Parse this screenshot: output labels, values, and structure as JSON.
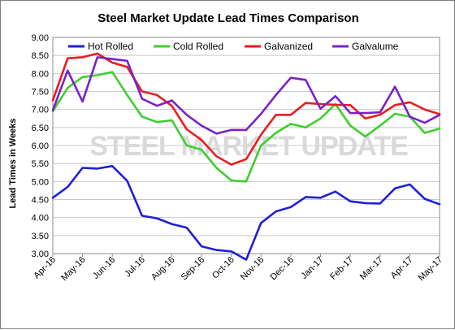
{
  "chart_data": {
    "type": "line",
    "title": "Steel Market Update Lead Times Comparison",
    "ylabel": "Lead Times in Weeks",
    "xlabel": "",
    "ylim": [
      3.0,
      9.0
    ],
    "yticks": [
      "3.00",
      "3.50",
      "4.00",
      "4.50",
      "5.00",
      "5.50",
      "6.00",
      "6.50",
      "7.00",
      "7.50",
      "8.00",
      "8.50",
      "9.00"
    ],
    "xticks": [
      "Apr-16",
      "May-16",
      "Jun-16",
      "Jul-16",
      "Aug-16",
      "Sep-16",
      "Oct-16",
      "Nov-16",
      "Dec-16",
      "Jan-17",
      "Feb-17",
      "Mar-17",
      "Apr-17",
      "May-17"
    ],
    "grid": true,
    "legend_position": "top",
    "watermark": "STEEL MARKET UPDATE",
    "x": [
      0,
      0.5,
      1,
      1.5,
      2,
      2.5,
      3,
      3.5,
      4,
      4.5,
      5,
      5.5,
      6,
      6.5,
      7,
      7.5,
      8,
      8.5,
      9,
      9.5,
      10,
      10.5,
      11,
      11.5,
      12,
      12.5,
      13
    ],
    "series": [
      {
        "name": "Hot Rolled",
        "color": "#1f1fd6",
        "values": [
          4.55,
          4.85,
          5.38,
          5.36,
          5.43,
          5.02,
          4.05,
          3.98,
          3.82,
          3.72,
          3.2,
          3.1,
          3.06,
          2.83,
          3.85,
          4.17,
          4.29,
          4.57,
          4.55,
          4.72,
          4.45,
          4.4,
          4.39,
          4.81,
          4.92,
          4.52,
          4.37
        ]
      },
      {
        "name": "Cold Rolled",
        "color": "#3ecf2c",
        "values": [
          6.95,
          7.6,
          7.9,
          7.95,
          8.04,
          7.4,
          6.8,
          6.65,
          6.7,
          6.0,
          5.88,
          5.38,
          5.03,
          5.0,
          6.0,
          6.35,
          6.6,
          6.5,
          6.75,
          7.15,
          6.55,
          6.25,
          6.55,
          6.88,
          6.8,
          6.35,
          6.47
        ]
      },
      {
        "name": "Galvanized",
        "color": "#e81e1e",
        "values": [
          7.25,
          8.42,
          8.45,
          8.55,
          8.3,
          8.18,
          7.5,
          7.4,
          7.1,
          6.45,
          6.15,
          5.7,
          5.47,
          5.62,
          6.3,
          6.85,
          6.85,
          7.18,
          7.15,
          7.13,
          7.12,
          6.75,
          6.85,
          7.12,
          7.2,
          7.0,
          6.87
        ]
      },
      {
        "name": "Galvalume",
        "color": "#7a22c8",
        "values": [
          6.98,
          8.08,
          7.22,
          8.45,
          8.4,
          8.35,
          7.3,
          7.1,
          7.25,
          6.85,
          6.55,
          6.33,
          6.43,
          6.43,
          6.88,
          7.4,
          7.88,
          7.82,
          7.02,
          7.37,
          6.9,
          6.9,
          6.92,
          7.63,
          6.8,
          6.63,
          6.85
        ]
      }
    ]
  }
}
